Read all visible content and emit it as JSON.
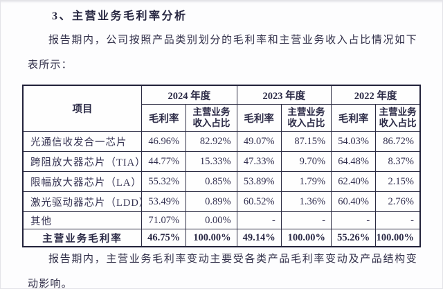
{
  "page": {
    "heading": "3、主营业务毛利率分析",
    "intro_paragraph": "报告期内，公司按照产品类别划分的毛利率和主营业务收入占比情况如下表所示：",
    "footer_paragraph": "报告期内，主营业务毛利率变动主要受各类产品毛利率变动及产品结构变动影响。"
  },
  "table": {
    "item_header": "项目",
    "year_headers": [
      "2024 年度",
      "2023 年度",
      "2022 年度"
    ],
    "sub_header_margin": "毛利率",
    "sub_header_share_line1": "主营业务",
    "sub_header_share_line2": "收入占比",
    "rows": [
      {
        "name": "光通信收发合一芯片",
        "values": [
          "46.96%",
          "82.92%",
          "49.07%",
          "87.15%",
          "54.03%",
          "86.72%"
        ]
      },
      {
        "name": "跨阻放大器芯片（TIA）",
        "values": [
          "44.77%",
          "15.33%",
          "47.33%",
          "9.70%",
          "64.48%",
          "8.37%"
        ]
      },
      {
        "name": "限幅放大器芯片（LA）",
        "values": [
          "55.32%",
          "0.85%",
          "53.89%",
          "1.79%",
          "62.40%",
          "2.15%"
        ]
      },
      {
        "name": "激光驱动器芯片（LDD）",
        "values": [
          "53.49%",
          "0.89%",
          "60.52%",
          "1.36%",
          "60.40%",
          "2.76%"
        ]
      },
      {
        "name": "其他",
        "values": [
          "71.07%",
          "0.00%",
          "-",
          "-",
          "-",
          "-"
        ]
      }
    ],
    "total_row": {
      "name": "主营业务毛利率",
      "values": [
        "46.75%",
        "100.00%",
        "49.14%",
        "100.00%",
        "55.26%",
        "100.00%"
      ]
    }
  },
  "colors": {
    "ink": "#34314e",
    "heading_ink": "#262640",
    "table_border": "#22223a",
    "page_background": "#fdfdfe"
  }
}
